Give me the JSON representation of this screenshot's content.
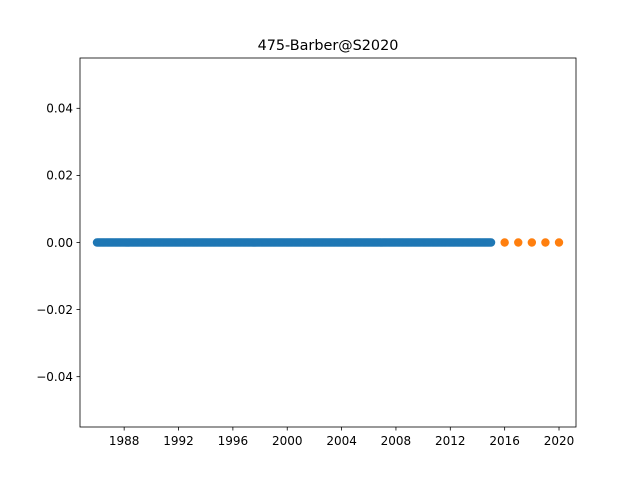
{
  "chart_data": {
    "type": "scatter",
    "title": "475-Barber@S2020",
    "xlabel": "",
    "ylabel": "",
    "xlim": [
      1984.75,
      2021.25
    ],
    "ylim": [
      -0.055,
      0.055
    ],
    "grid": false,
    "x_ticks": [
      1988,
      1992,
      1996,
      2000,
      2004,
      2008,
      2012,
      2016,
      2020
    ],
    "y_ticks": [
      0.04,
      0.02,
      0.0,
      -0.02,
      -0.04
    ],
    "y_tick_labels": [
      "0.04",
      "0.02",
      "0.00",
      "−0.02",
      "−0.04"
    ],
    "series": [
      {
        "color": "#1f77b4",
        "x_start": 1986.0,
        "x_end": 2015.0,
        "x_step": 0.0833333,
        "y": 0.0
      },
      {
        "color": "#ff7f0e",
        "x": [
          2016,
          2017,
          2018,
          2019,
          2020
        ],
        "y": [
          0,
          0,
          0,
          0,
          0
        ]
      }
    ]
  }
}
